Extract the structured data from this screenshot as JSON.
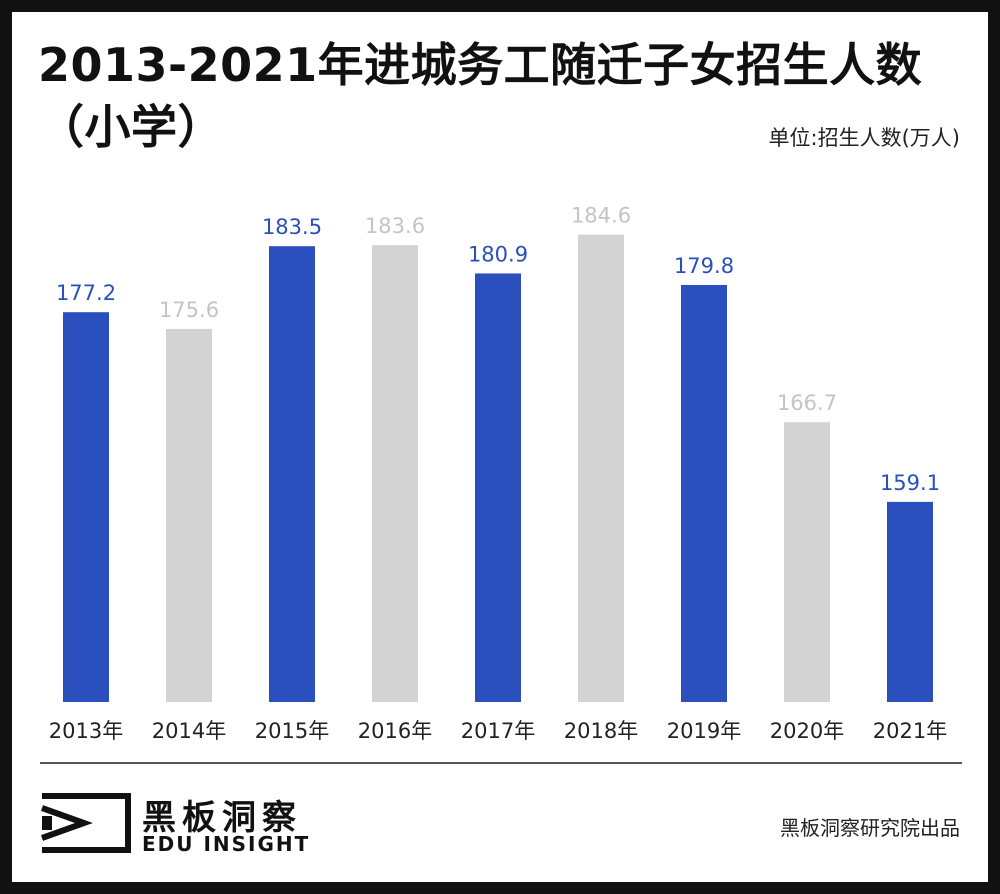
{
  "header": {
    "title_line1": "2013-2021年进城务工随迁子女招生人数",
    "title_line2": "（小学）",
    "unit": "单位:招生人数(万人)"
  },
  "colors": {
    "highlight": "#2b4fbd",
    "muted": "#d3d3d3",
    "muted_label": "#c4c4c4"
  },
  "chart_data": {
    "type": "bar",
    "categories": [
      "2013年",
      "2014年",
      "2015年",
      "2016年",
      "2017年",
      "2018年",
      "2019年",
      "2020年",
      "2021年"
    ],
    "values": [
      177.2,
      175.6,
      183.5,
      183.6,
      180.9,
      184.6,
      179.8,
      166.7,
      159.1
    ],
    "value_labels": [
      "177.2",
      "175.6",
      "183.5",
      "183.6",
      "180.9",
      "184.6",
      "179.8",
      "166.7",
      "159.1"
    ],
    "highlighted": [
      true,
      false,
      true,
      false,
      true,
      false,
      true,
      false,
      true
    ],
    "ylim": [
      140,
      186
    ],
    "grid": false,
    "legend": "none"
  },
  "footer": {
    "brand_cn": "黑板洞察",
    "brand_en": "EDU INSIGHT",
    "source": "黑板洞察研究院出品"
  }
}
